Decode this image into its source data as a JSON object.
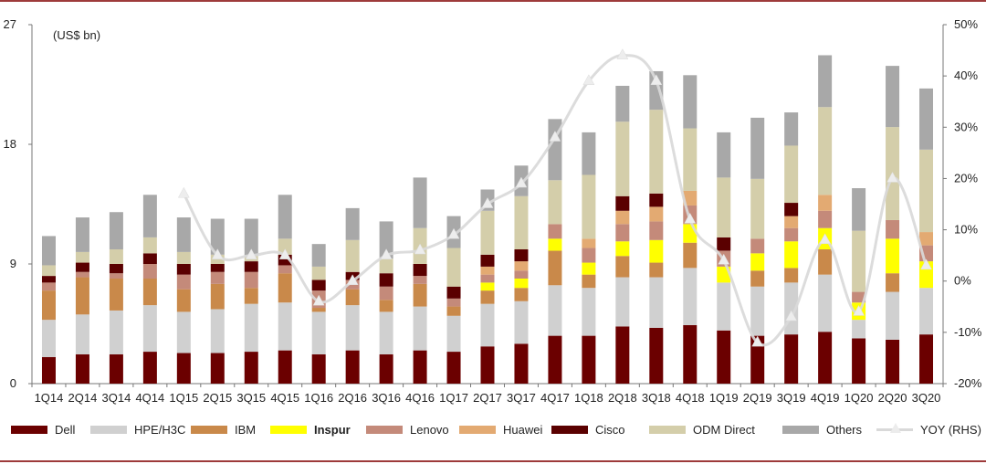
{
  "chart_data": {
    "type": "bar",
    "stacked": true,
    "unit_label": "(US$ bn)",
    "categories": [
      "1Q14",
      "2Q14",
      "3Q14",
      "4Q14",
      "1Q15",
      "2Q15",
      "3Q15",
      "4Q15",
      "1Q16",
      "2Q16",
      "3Q16",
      "4Q16",
      "1Q17",
      "2Q17",
      "3Q17",
      "4Q17",
      "1Q18",
      "2Q18",
      "3Q18",
      "4Q18",
      "1Q19",
      "2Q19",
      "3Q19",
      "4Q19",
      "1Q20",
      "2Q20",
      "3Q20"
    ],
    "left_axis": {
      "ylim": [
        0,
        27
      ],
      "ticks": [
        "0",
        "9",
        "18",
        "27"
      ]
    },
    "right_axis": {
      "ylim": [
        -20,
        50
      ],
      "ticks": [
        "-20%",
        "-10%",
        "0%",
        "10%",
        "20%",
        "30%",
        "40%",
        "50%"
      ]
    },
    "series": [
      {
        "name": "Dell",
        "color": "#6b0000",
        "values": [
          2.0,
          2.2,
          2.2,
          2.4,
          2.3,
          2.3,
          2.4,
          2.5,
          2.2,
          2.5,
          2.2,
          2.5,
          2.4,
          2.8,
          3.0,
          3.6,
          3.6,
          4.3,
          4.2,
          4.4,
          4.0,
          3.6,
          3.7,
          3.9,
          3.4,
          3.3,
          3.7
        ]
      },
      {
        "name": "HPE/H3C",
        "color": "#d0d0d0",
        "values": [
          2.8,
          3.0,
          3.3,
          3.5,
          3.1,
          3.3,
          3.6,
          3.6,
          3.2,
          3.4,
          3.2,
          3.3,
          2.7,
          3.2,
          3.2,
          3.8,
          3.6,
          3.7,
          3.8,
          4.3,
          3.6,
          3.7,
          3.9,
          4.3,
          1.4,
          3.6,
          3.5
        ]
      },
      {
        "name": "IBM",
        "color": "#c9894a",
        "values": [
          2.2,
          2.8,
          2.4,
          2.0,
          1.7,
          1.9,
          1.2,
          2.2,
          0.3,
          1.2,
          0.9,
          1.7,
          0.7,
          1.0,
          1.0,
          2.6,
          1.0,
          1.6,
          1.1,
          1.9,
          0.0,
          1.2,
          1.1,
          1.9,
          0.0,
          1.4,
          0.0
        ]
      },
      {
        "name": "Inspur",
        "color": "#ffff00",
        "values": [
          0.0,
          0.0,
          0.0,
          0.0,
          0.0,
          0.0,
          0.0,
          0.0,
          0.0,
          0.0,
          0.0,
          0.0,
          0.0,
          0.6,
          0.7,
          0.9,
          0.9,
          1.1,
          1.7,
          1.4,
          1.2,
          1.3,
          2.0,
          1.6,
          1.3,
          2.6,
          2.0
        ]
      },
      {
        "name": "Lenovo",
        "color": "#c48a7a",
        "values": [
          0.6,
          0.4,
          0.4,
          1.1,
          1.1,
          0.9,
          1.2,
          0.6,
          1.3,
          0.7,
          1.0,
          0.6,
          0.6,
          0.6,
          0.6,
          1.1,
          1.1,
          1.3,
          1.4,
          1.4,
          1.2,
          1.1,
          1.0,
          1.3,
          0.8,
          1.4,
          1.2
        ]
      },
      {
        "name": "Huawei",
        "color": "#e3aa72",
        "values": [
          0.0,
          0.0,
          0.0,
          0.0,
          0.0,
          0.0,
          0.0,
          0.0,
          0.0,
          0.0,
          0.0,
          0.0,
          0.0,
          0.6,
          0.7,
          0.0,
          0.7,
          1.0,
          1.1,
          1.1,
          0.0,
          0.0,
          0.9,
          1.2,
          0.0,
          0.0,
          1.0
        ]
      },
      {
        "name": "Cisco",
        "color": "#5a0000",
        "values": [
          0.5,
          0.7,
          0.7,
          0.8,
          0.8,
          0.6,
          0.8,
          0.8,
          0.8,
          0.6,
          1.0,
          0.9,
          0.9,
          0.9,
          0.9,
          0.0,
          0.0,
          1.1,
          1.0,
          0.0,
          1.0,
          0.0,
          1.0,
          0.0,
          0.0,
          0.0,
          0.0
        ]
      },
      {
        "name": "ODM Direct",
        "color": "#d4ceaa",
        "values": [
          0.8,
          0.8,
          1.1,
          1.2,
          0.9,
          0.7,
          0.4,
          1.2,
          1.0,
          2.4,
          1.1,
          2.7,
          2.9,
          3.3,
          4.0,
          3.3,
          4.8,
          5.6,
          6.3,
          4.7,
          4.5,
          4.5,
          4.3,
          6.6,
          4.6,
          7.0,
          6.2
        ]
      },
      {
        "name": "Others",
        "color": "#a8a8a8",
        "values": [
          2.2,
          2.6,
          2.8,
          3.2,
          2.6,
          2.7,
          2.8,
          3.3,
          1.7,
          2.4,
          2.8,
          3.8,
          2.4,
          1.6,
          2.3,
          4.6,
          3.2,
          2.7,
          2.9,
          4.0,
          3.4,
          4.6,
          2.5,
          3.9,
          3.2,
          4.6,
          4.6
        ]
      }
    ],
    "line_series": {
      "name": "YOY (RHS)",
      "axis": "right",
      "color": "#d9d9d9",
      "values": [
        null,
        null,
        null,
        null,
        17,
        5,
        5,
        5,
        -4,
        0,
        5,
        6,
        9,
        15,
        19,
        28,
        39,
        44,
        39,
        12,
        4,
        -12,
        -7,
        8,
        -6,
        20,
        3
      ]
    },
    "legend_position": "bottom",
    "legend": [
      {
        "label": "Dell",
        "kind": "bar",
        "color": "#6b0000"
      },
      {
        "label": "HPE/H3C",
        "kind": "bar",
        "color": "#d0d0d0"
      },
      {
        "label": "IBM",
        "kind": "bar",
        "color": "#c9894a"
      },
      {
        "label": "Inspur",
        "kind": "bar",
        "color": "#ffff00",
        "bold": true
      },
      {
        "label": "Lenovo",
        "kind": "bar",
        "color": "#c48a7a"
      },
      {
        "label": "Huawei",
        "kind": "bar",
        "color": "#e3aa72"
      },
      {
        "label": "Cisco",
        "kind": "bar",
        "color": "#5a0000"
      },
      {
        "label": "ODM Direct",
        "kind": "bar",
        "color": "#d4ceaa"
      },
      {
        "label": "Others",
        "kind": "bar",
        "color": "#a8a8a8"
      },
      {
        "label": "YOY (RHS)",
        "kind": "line",
        "color": "#d9d9d9"
      }
    ]
  }
}
